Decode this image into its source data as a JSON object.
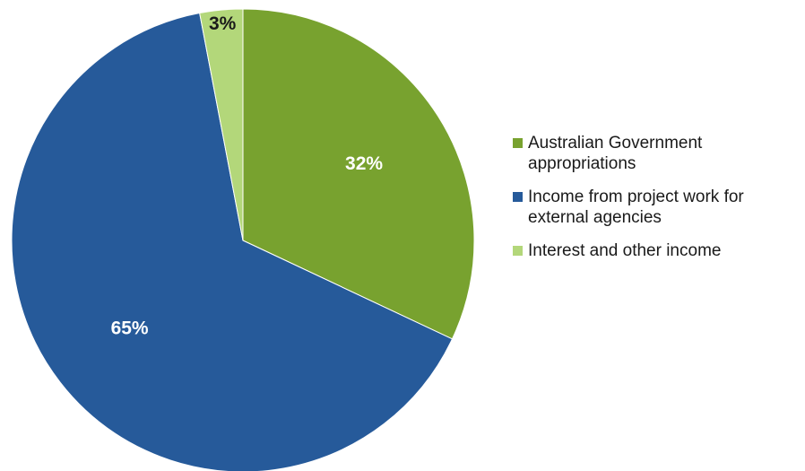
{
  "chart_data": {
    "type": "pie",
    "slices": [
      {
        "label": "Australian Government appropriations",
        "value": 32,
        "display": "32%",
        "color": "#78a22f",
        "label_color": "#ffffff"
      },
      {
        "label": "Income from project work for external agencies",
        "value": 65,
        "display": "65%",
        "color": "#265a9a",
        "label_color": "#ffffff"
      },
      {
        "label": "Interest and other income",
        "value": 3,
        "display": "3%",
        "color": "#b3d77a",
        "label_color": "#1a1a1a"
      }
    ],
    "start": "12 o'clock",
    "direction": "clockwise",
    "legend_position": "right"
  }
}
